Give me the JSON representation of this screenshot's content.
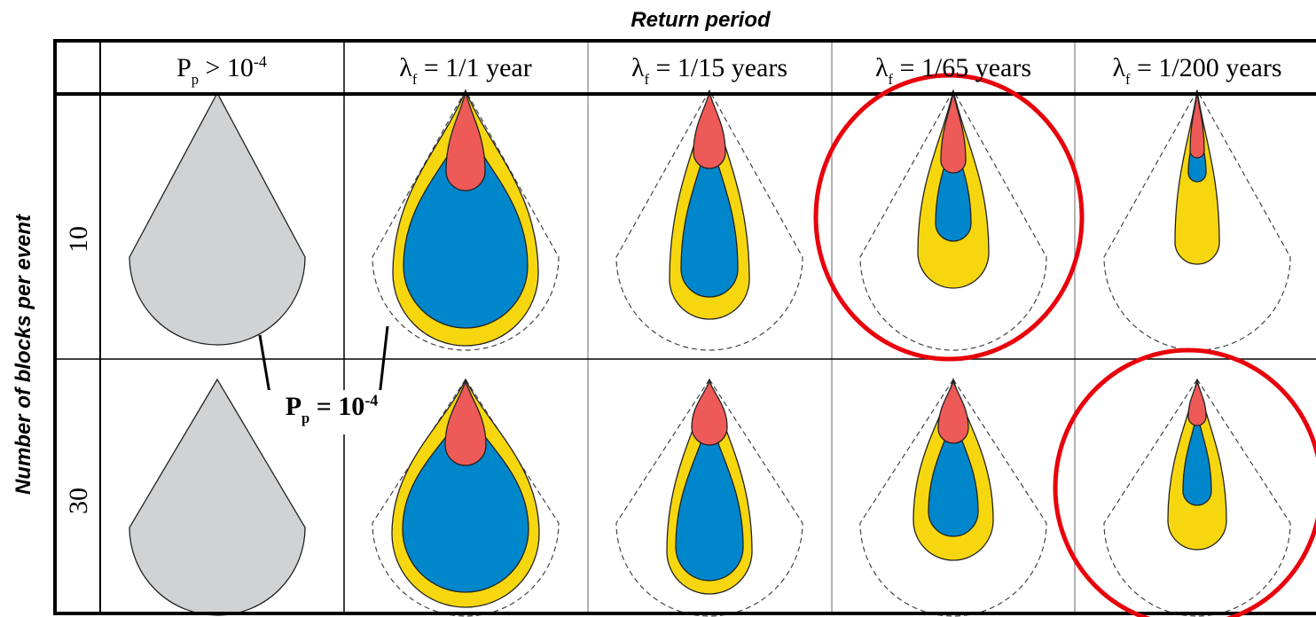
{
  "title": "Return period",
  "y_axis_label": "Number of blocks per event",
  "columns": [
    {
      "main": "P",
      "sub": "p",
      "rest": "> 10",
      "sup": "-4"
    },
    {
      "main": "λ",
      "sub": "f",
      "rest": "= 1/1 year"
    },
    {
      "main": "λ",
      "sub": "f",
      "rest": "= 1/15 years"
    },
    {
      "main": "λ",
      "sub": "f",
      "rest": "= 1/65 years"
    },
    {
      "main": "λ",
      "sub": "f",
      "rest": "= 1/200 years"
    }
  ],
  "rows": [
    "10",
    "30"
  ],
  "annotation": {
    "main": "P",
    "sub": "p",
    "rest": "= 10",
    "sup": "-4"
  }
}
